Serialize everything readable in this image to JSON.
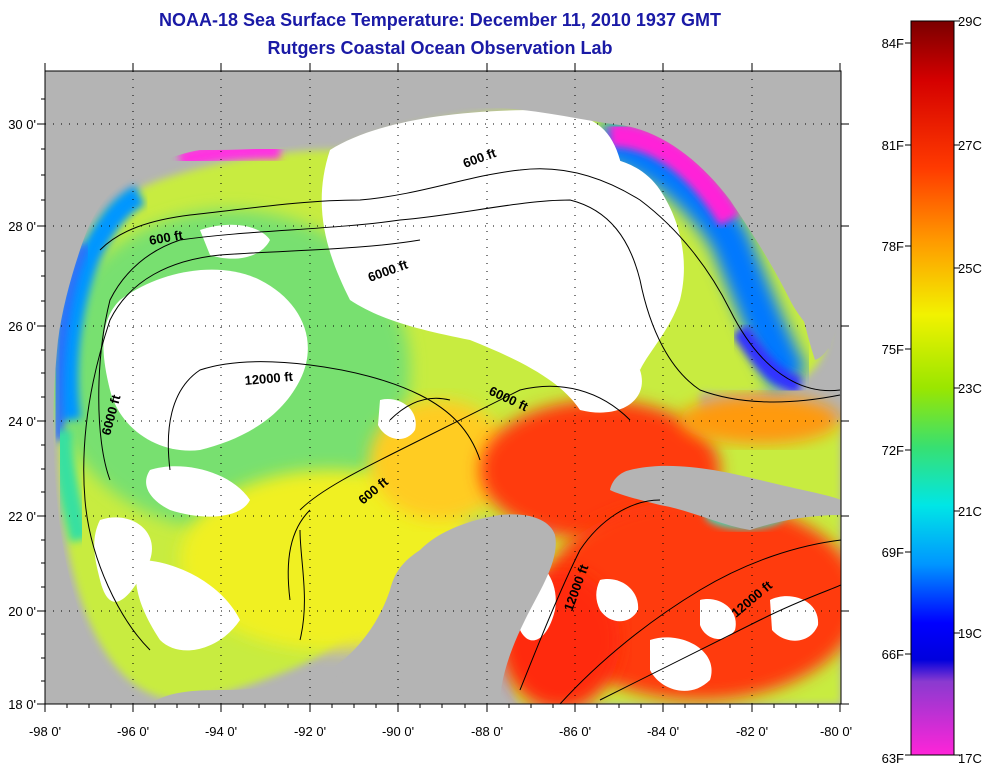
{
  "title": "NOAA-18 Sea Surface Temperature:  December 11, 2010 1937 GMT",
  "subtitle": "Rutgers Coastal Ocean Observation Lab",
  "axes": {
    "lat_ticks": [
      "18 0'",
      "20 0'",
      "22 0'",
      "24 0'",
      "26 0'",
      "28 0'",
      "30 0'"
    ],
    "lon_ticks": [
      "-98 0'",
      "-96 0'",
      "-94 0'",
      "-92 0'",
      "-90 0'",
      "-88 0'",
      "-86 0'",
      "-84 0'",
      "-82 0'",
      "-80 0'"
    ]
  },
  "depth_labels": {
    "d1": "600 ft",
    "d2": "600 ft",
    "d3": "6000 ft",
    "d4": "12000 ft",
    "d5": "6000 ft",
    "d6": "6000 ft",
    "d7": "600 ft",
    "d8": "12000 ft",
    "d9": "12000 ft"
  },
  "colorbar": {
    "fahrenheit": [
      "84F",
      "81F",
      "78F",
      "75F",
      "72F",
      "69F",
      "66F",
      "63F"
    ],
    "celsius": [
      "29C",
      "27C",
      "25C",
      "23C",
      "21C",
      "19C",
      "17C"
    ]
  },
  "colors": {
    "land": "#b4b4b4",
    "cloud": "#ffffff",
    "title": "#1a1aa6"
  }
}
